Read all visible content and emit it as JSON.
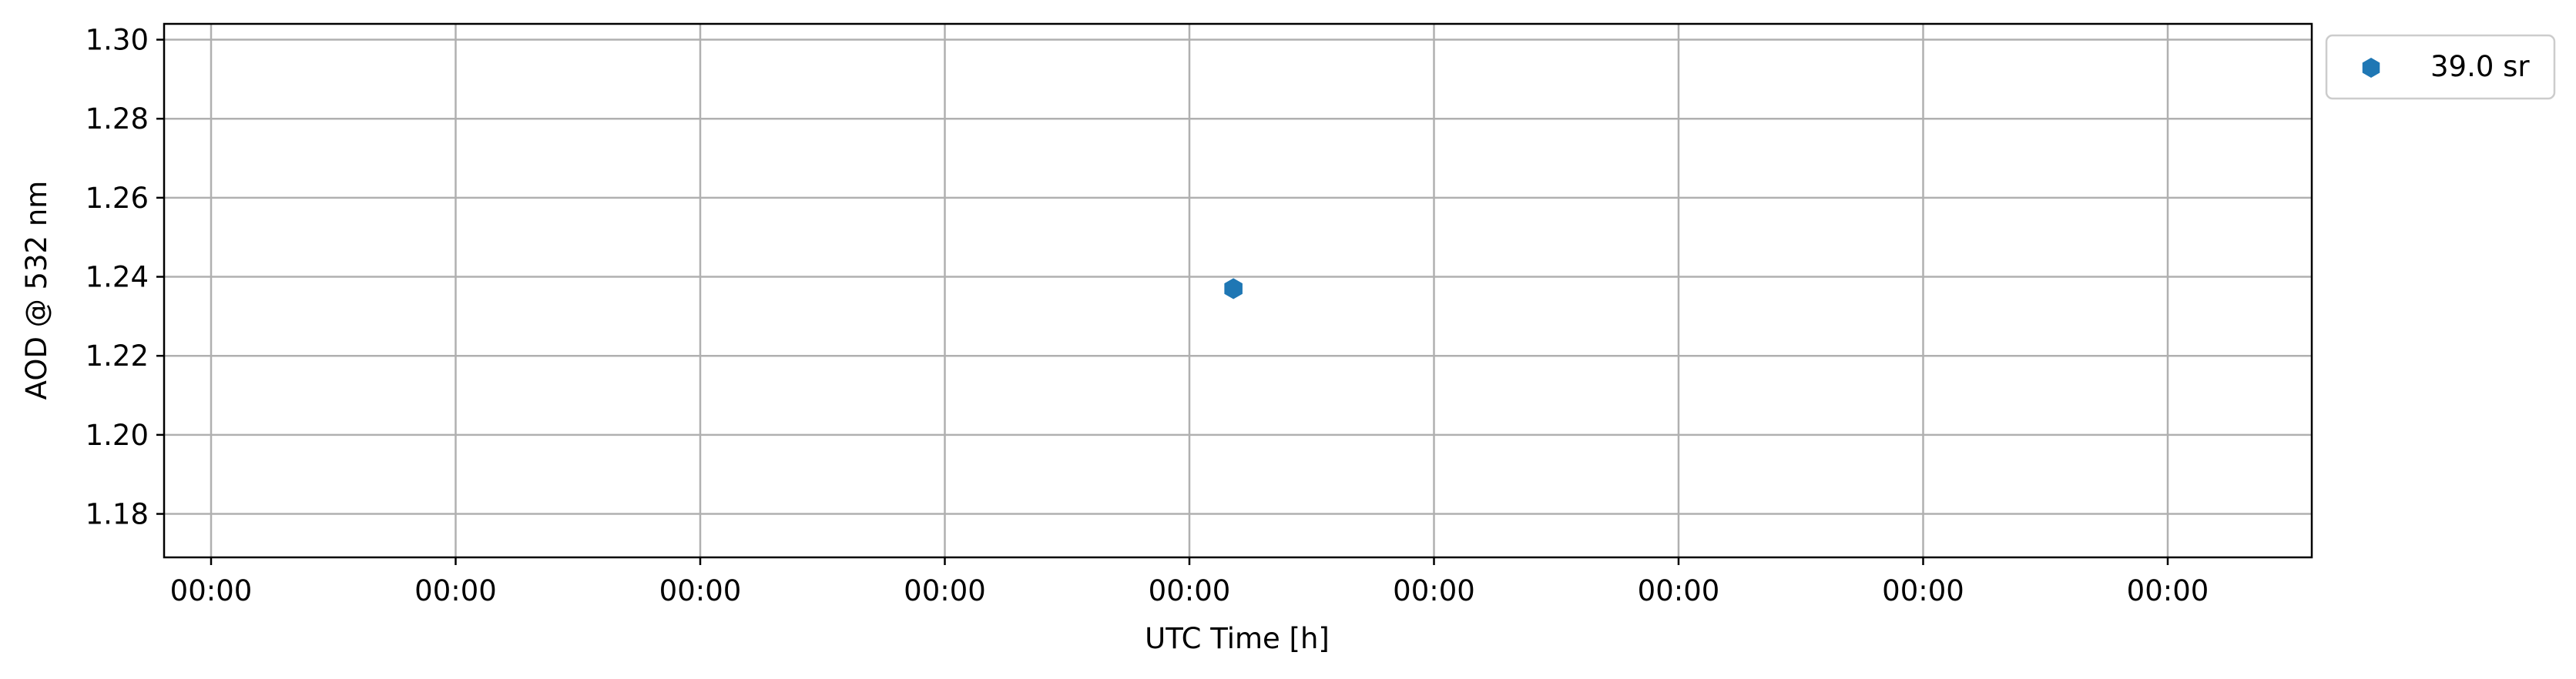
{
  "chart_data": {
    "type": "scatter",
    "title": "",
    "xlabel": "UTC Time [h]",
    "ylabel": "AOD @ 532 nm",
    "x_tick_labels": [
      "00:00",
      "00:00",
      "00:00",
      "00:00",
      "00:00",
      "00:00",
      "00:00",
      "00:00",
      "00:00"
    ],
    "y_ticks": [
      "1.18",
      "1.20",
      "1.22",
      "1.24",
      "1.26",
      "1.28",
      "1.30"
    ],
    "ylim": [
      1.169,
      1.304
    ],
    "x_ticks_count": 9,
    "x_point_ticks": 4.18,
    "series": [
      {
        "name": "39.0 sr",
        "values": [
          1.237
        ],
        "color": "#1f77b4",
        "marker": "hexagon"
      }
    ],
    "grid": true,
    "legend_position": "outside-top-right"
  }
}
